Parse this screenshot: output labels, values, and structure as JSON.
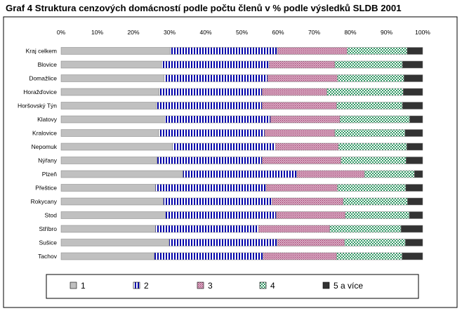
{
  "chart_data": {
    "type": "bar",
    "orientation": "horizontal",
    "stacked": "percent",
    "title": "Graf 4  Struktura cenzových domácností podle počtu členů v % podle výsledků SLDB 2001",
    "xlabel": "",
    "ylabel": "",
    "xlim": [
      0,
      100
    ],
    "xticks": [
      "0%",
      "10%",
      "20%",
      "30%",
      "40%",
      "50%",
      "60%",
      "70%",
      "80%",
      "90%",
      "100%"
    ],
    "grid": false,
    "legend_position": "bottom",
    "categories": [
      "Kraj celkem",
      "Blovice",
      "Domažlice",
      "Horažďovice",
      "Horšovský Týn",
      "Klatovy",
      "Kralovice",
      "Nepomuk",
      "Nýřany",
      "Plzeň",
      "Přeštice",
      "Rokycany",
      "Stod",
      "Stříbro",
      "Sušice",
      "Tachov"
    ],
    "series": [
      {
        "name": "1",
        "color": "#c0c0c0",
        "pattern": "solid",
        "values": [
          30.2,
          27.8,
          28.5,
          27.1,
          26.4,
          28.6,
          27.0,
          30.8,
          26.6,
          33.7,
          26.1,
          28.3,
          28.8,
          26.1,
          29.9,
          25.8
        ]
      },
      {
        "name": "2",
        "color": "#0000aa",
        "pattern": "vertical-stripes",
        "values": [
          29.6,
          29.7,
          28.6,
          28.5,
          29.2,
          29.3,
          29.3,
          28.5,
          29.0,
          31.5,
          30.6,
          30.0,
          30.7,
          28.5,
          29.9,
          30.1
        ]
      },
      {
        "name": "3",
        "color": "#993366",
        "pattern": "dots",
        "values": [
          19.3,
          18.2,
          19.3,
          17.9,
          20.6,
          19.2,
          19.4,
          17.4,
          21.8,
          18.7,
          19.7,
          19.7,
          19.1,
          19.7,
          18.6,
          20.3
        ]
      },
      {
        "name": "4",
        "color": "#339966",
        "pattern": "checker",
        "values": [
          16.6,
          18.7,
          18.4,
          21.1,
          18.2,
          19.3,
          19.4,
          18.9,
          18.0,
          13.8,
          18.9,
          17.8,
          17.7,
          19.7,
          16.8,
          18.1
        ]
      },
      {
        "name": "5 a více",
        "color": "#333333",
        "pattern": "solid",
        "values": [
          4.3,
          5.6,
          5.2,
          5.4,
          5.6,
          3.6,
          4.9,
          4.4,
          4.6,
          2.3,
          4.7,
          4.2,
          3.7,
          6.0,
          4.8,
          5.7
        ]
      }
    ]
  }
}
